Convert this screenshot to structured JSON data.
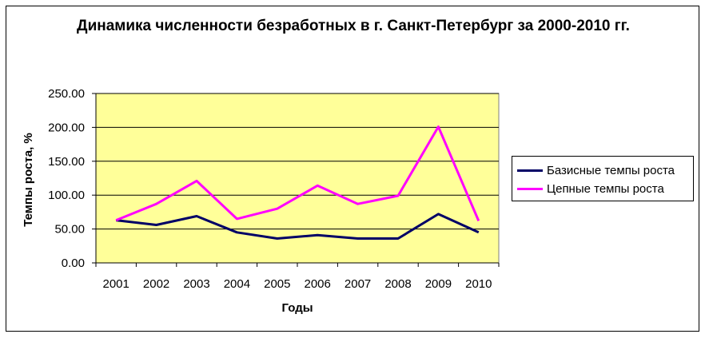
{
  "chart_data": {
    "type": "line",
    "title": "Динамика численности безработных в г. Санкт-Петербург за 2000-2010 гг.",
    "xlabel": "Годы",
    "ylabel": "Темпы роста, %",
    "categories": [
      "2001",
      "2002",
      "2003",
      "2004",
      "2005",
      "2006",
      "2007",
      "2008",
      "2009",
      "2010"
    ],
    "ylim": [
      0,
      250
    ],
    "yticks": [
      "0.00",
      "50.00",
      "100.00",
      "150.00",
      "200.00",
      "250.00"
    ],
    "grid": true,
    "legend_position": "right",
    "plot_background": "#FFFF99",
    "series": [
      {
        "name": "Базисные темпы роста",
        "color": "#000066",
        "values": [
          63,
          56,
          69,
          45,
          36,
          41,
          36,
          36,
          72,
          45
        ]
      },
      {
        "name": "Цепные темпы роста",
        "color": "#FF00FF",
        "values": [
          63,
          87,
          121,
          65,
          80,
          114,
          87,
          99,
          201,
          62
        ]
      }
    ]
  }
}
